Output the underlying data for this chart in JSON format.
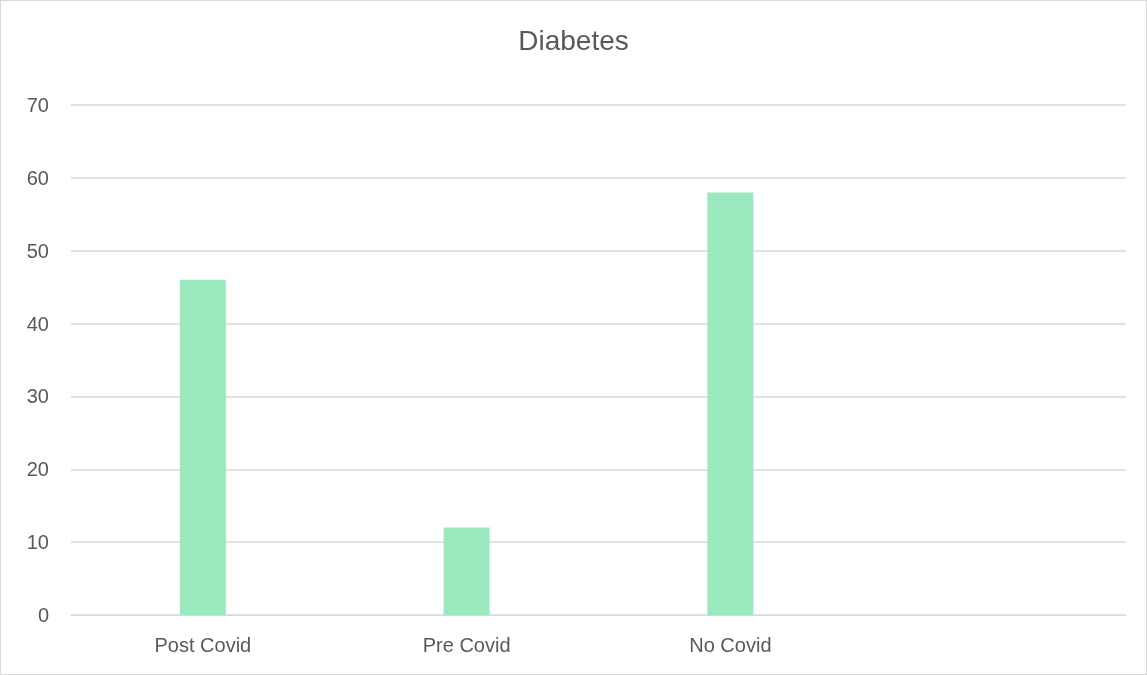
{
  "chart_data": {
    "type": "bar",
    "title": "Diabetes",
    "categories": [
      "Post Covid",
      "Pre Covid",
      "No Covid",
      null
    ],
    "series": [
      {
        "color": "#9be8bf",
        "values": [
          46,
          12,
          58,
          null
        ]
      }
    ],
    "ylim": [
      0,
      70
    ],
    "yticks": [
      0,
      10,
      20,
      30,
      40,
      50,
      60,
      70
    ],
    "grid": "y"
  }
}
